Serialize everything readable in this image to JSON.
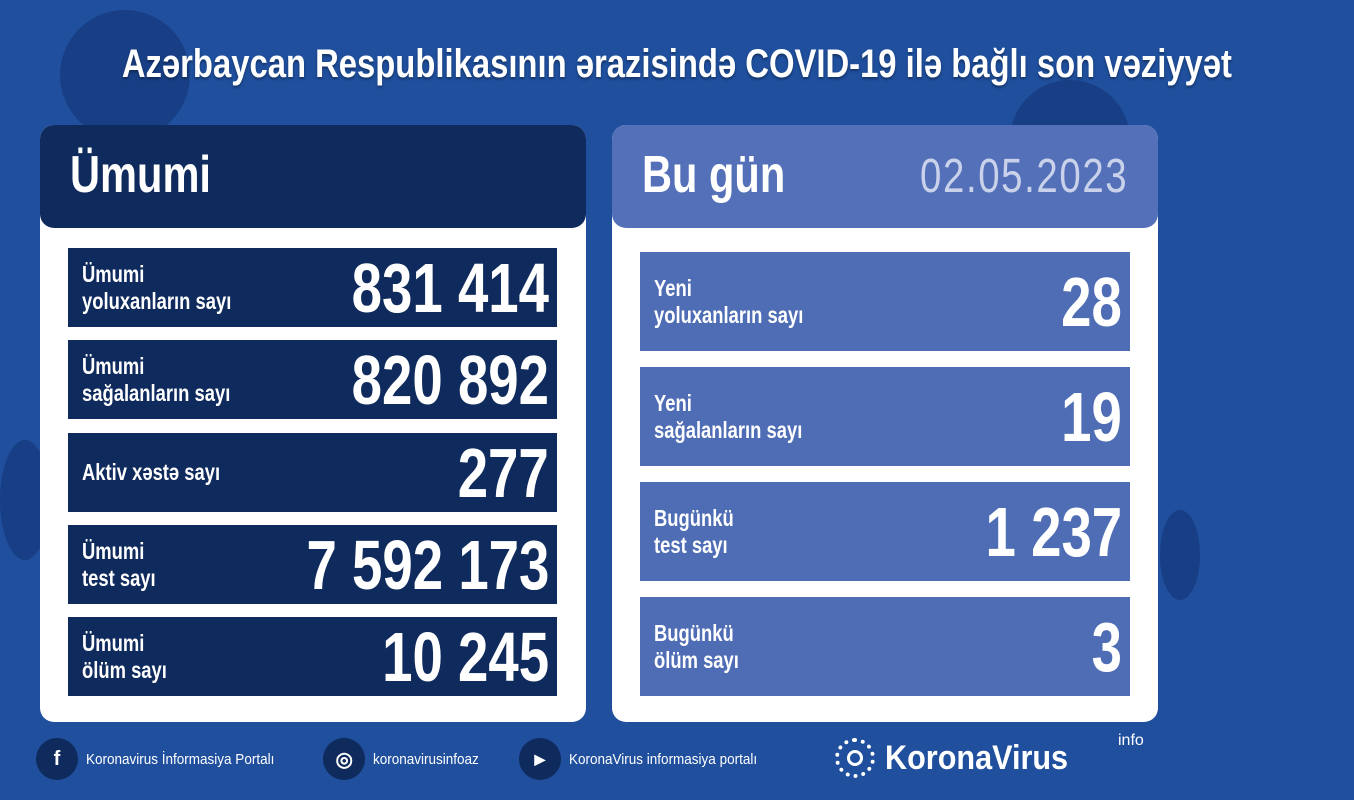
{
  "title": "Azərbaycan Respublikasının ərazisində COVID-19 ilə bağlı son vəziyyət",
  "overall": {
    "heading": "Ümumi",
    "rows": [
      {
        "label1": "Ümumi",
        "label2": "yoluxanların sayı",
        "value": "831 414"
      },
      {
        "label1": "Ümumi",
        "label2": "sağalanların sayı",
        "value": "820 892"
      },
      {
        "label1": "Aktiv xəstə sayı",
        "label2": "",
        "value": "277"
      },
      {
        "label1": "Ümumi",
        "label2": "test sayı",
        "value": "7 592 173"
      },
      {
        "label1": "Ümumi",
        "label2": "ölüm sayı",
        "value": "10 245"
      }
    ]
  },
  "today": {
    "heading": "Bu gün",
    "date": "02.05.2023",
    "rows": [
      {
        "label1": "Yeni",
        "label2": "yoluxanların sayı",
        "value": "28"
      },
      {
        "label1": "Yeni",
        "label2": "sağalanların sayı",
        "value": "19"
      },
      {
        "label1": "Bugünkü",
        "label2": "test sayı",
        "value": "1 237"
      },
      {
        "label1": "Bugünkü",
        "label2": "ölüm sayı",
        "value": "3"
      }
    ]
  },
  "footer": {
    "facebook": "Koronavirus İnformasiya Portalı",
    "instagram": "koronavirusinfoaz",
    "youtube": "KoronaVirus informasiya portalı"
  },
  "logo": {
    "brand": "KoronaVirus",
    "sup": "info"
  },
  "colors": {
    "background": "#1f4f9d",
    "dark_row": "#0f2a5c",
    "light_row": "#4f6db5"
  }
}
